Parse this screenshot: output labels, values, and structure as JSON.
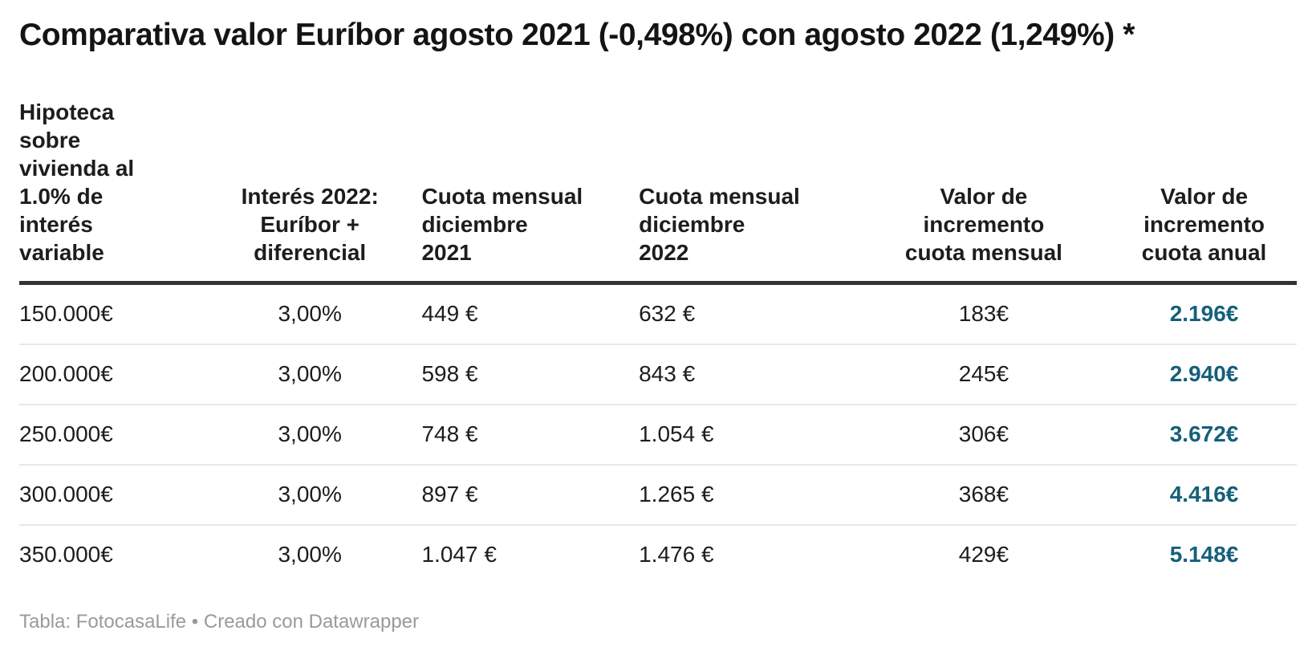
{
  "title": "Comparativa valor Euríbor agosto 2021 (-0,498%) con agosto 2022 (1,249%) *",
  "table": {
    "headers": [
      "Hipoteca\nsobre\nvivienda al\n1.0% de\ninterés\nvariable",
      "Interés 2022:\nEuríbor +\ndiferencial",
      "Cuota mensual\ndiciembre\n2021",
      "Cuota mensual\ndiciembre\n2022",
      "Valor de\nincremento\ncuota mensual",
      "Valor de\nincremento\ncuota anual"
    ],
    "rows": [
      [
        "150.000€",
        "3,00%",
        "449 €",
        "632 €",
        "183€",
        "2.196€"
      ],
      [
        "200.000€",
        "3,00%",
        "598 €",
        "843 €",
        "245€",
        "2.940€"
      ],
      [
        "250.000€",
        "3,00%",
        "748 €",
        "1.054 €",
        "306€",
        "3.672€"
      ],
      [
        "300.000€",
        "3,00%",
        "897 €",
        "1.265 €",
        "368€",
        "4.416€"
      ],
      [
        "350.000€",
        "3,00%",
        "1.047 €",
        "1.476 €",
        "429€",
        "5.148€"
      ]
    ]
  },
  "footer": {
    "text": "Tabla: FotocasaLife • Creado con Datawrapper"
  },
  "colors": {
    "accent_value_text": "#15607a",
    "header_rule": "#333333",
    "row_divider": "#e8e8e8",
    "attribution_text": "#9a9a9a",
    "title_text": "#141414",
    "body_text": "#1d1d1d"
  },
  "chart_data": {
    "type": "table",
    "title": "Comparativa valor Euríbor agosto 2021 (-0,498%) con agosto 2022 (1,249%) *",
    "columns": [
      "Hipoteca sobre vivienda al 1.0% de interés variable",
      "Interés 2022: Euríbor + diferencial",
      "Cuota mensual diciembre 2021",
      "Cuota mensual diciembre 2022",
      "Valor de incremento cuota mensual",
      "Valor de incremento cuota anual"
    ],
    "rows": [
      [
        "150.000€",
        "3,00%",
        "449 €",
        "632 €",
        "183€",
        "2.196€"
      ],
      [
        "200.000€",
        "3,00%",
        "598 €",
        "843 €",
        "245€",
        "2.940€"
      ],
      [
        "250.000€",
        "3,00%",
        "748 €",
        "1.054 €",
        "306€",
        "3.672€"
      ],
      [
        "300.000€",
        "3,00%",
        "897 €",
        "1.265 €",
        "368€",
        "4.416€"
      ],
      [
        "350.000€",
        "3,00%",
        "1.047 €",
        "1.476 €",
        "429€",
        "5.148€"
      ]
    ],
    "notes": "Euríbor agosto 2021: -0,498% | Euríbor agosto 2022: 1,249%",
    "source": "FotocasaLife",
    "tool": "Datawrapper",
    "layout_hints": {
      "column_alignment": [
        "left",
        "center",
        "left",
        "left",
        "center",
        "center"
      ],
      "last_column_style": "bold teal #15607a",
      "header_rule": "thick dark line below header",
      "row_dividers": "light gray hairlines"
    }
  }
}
